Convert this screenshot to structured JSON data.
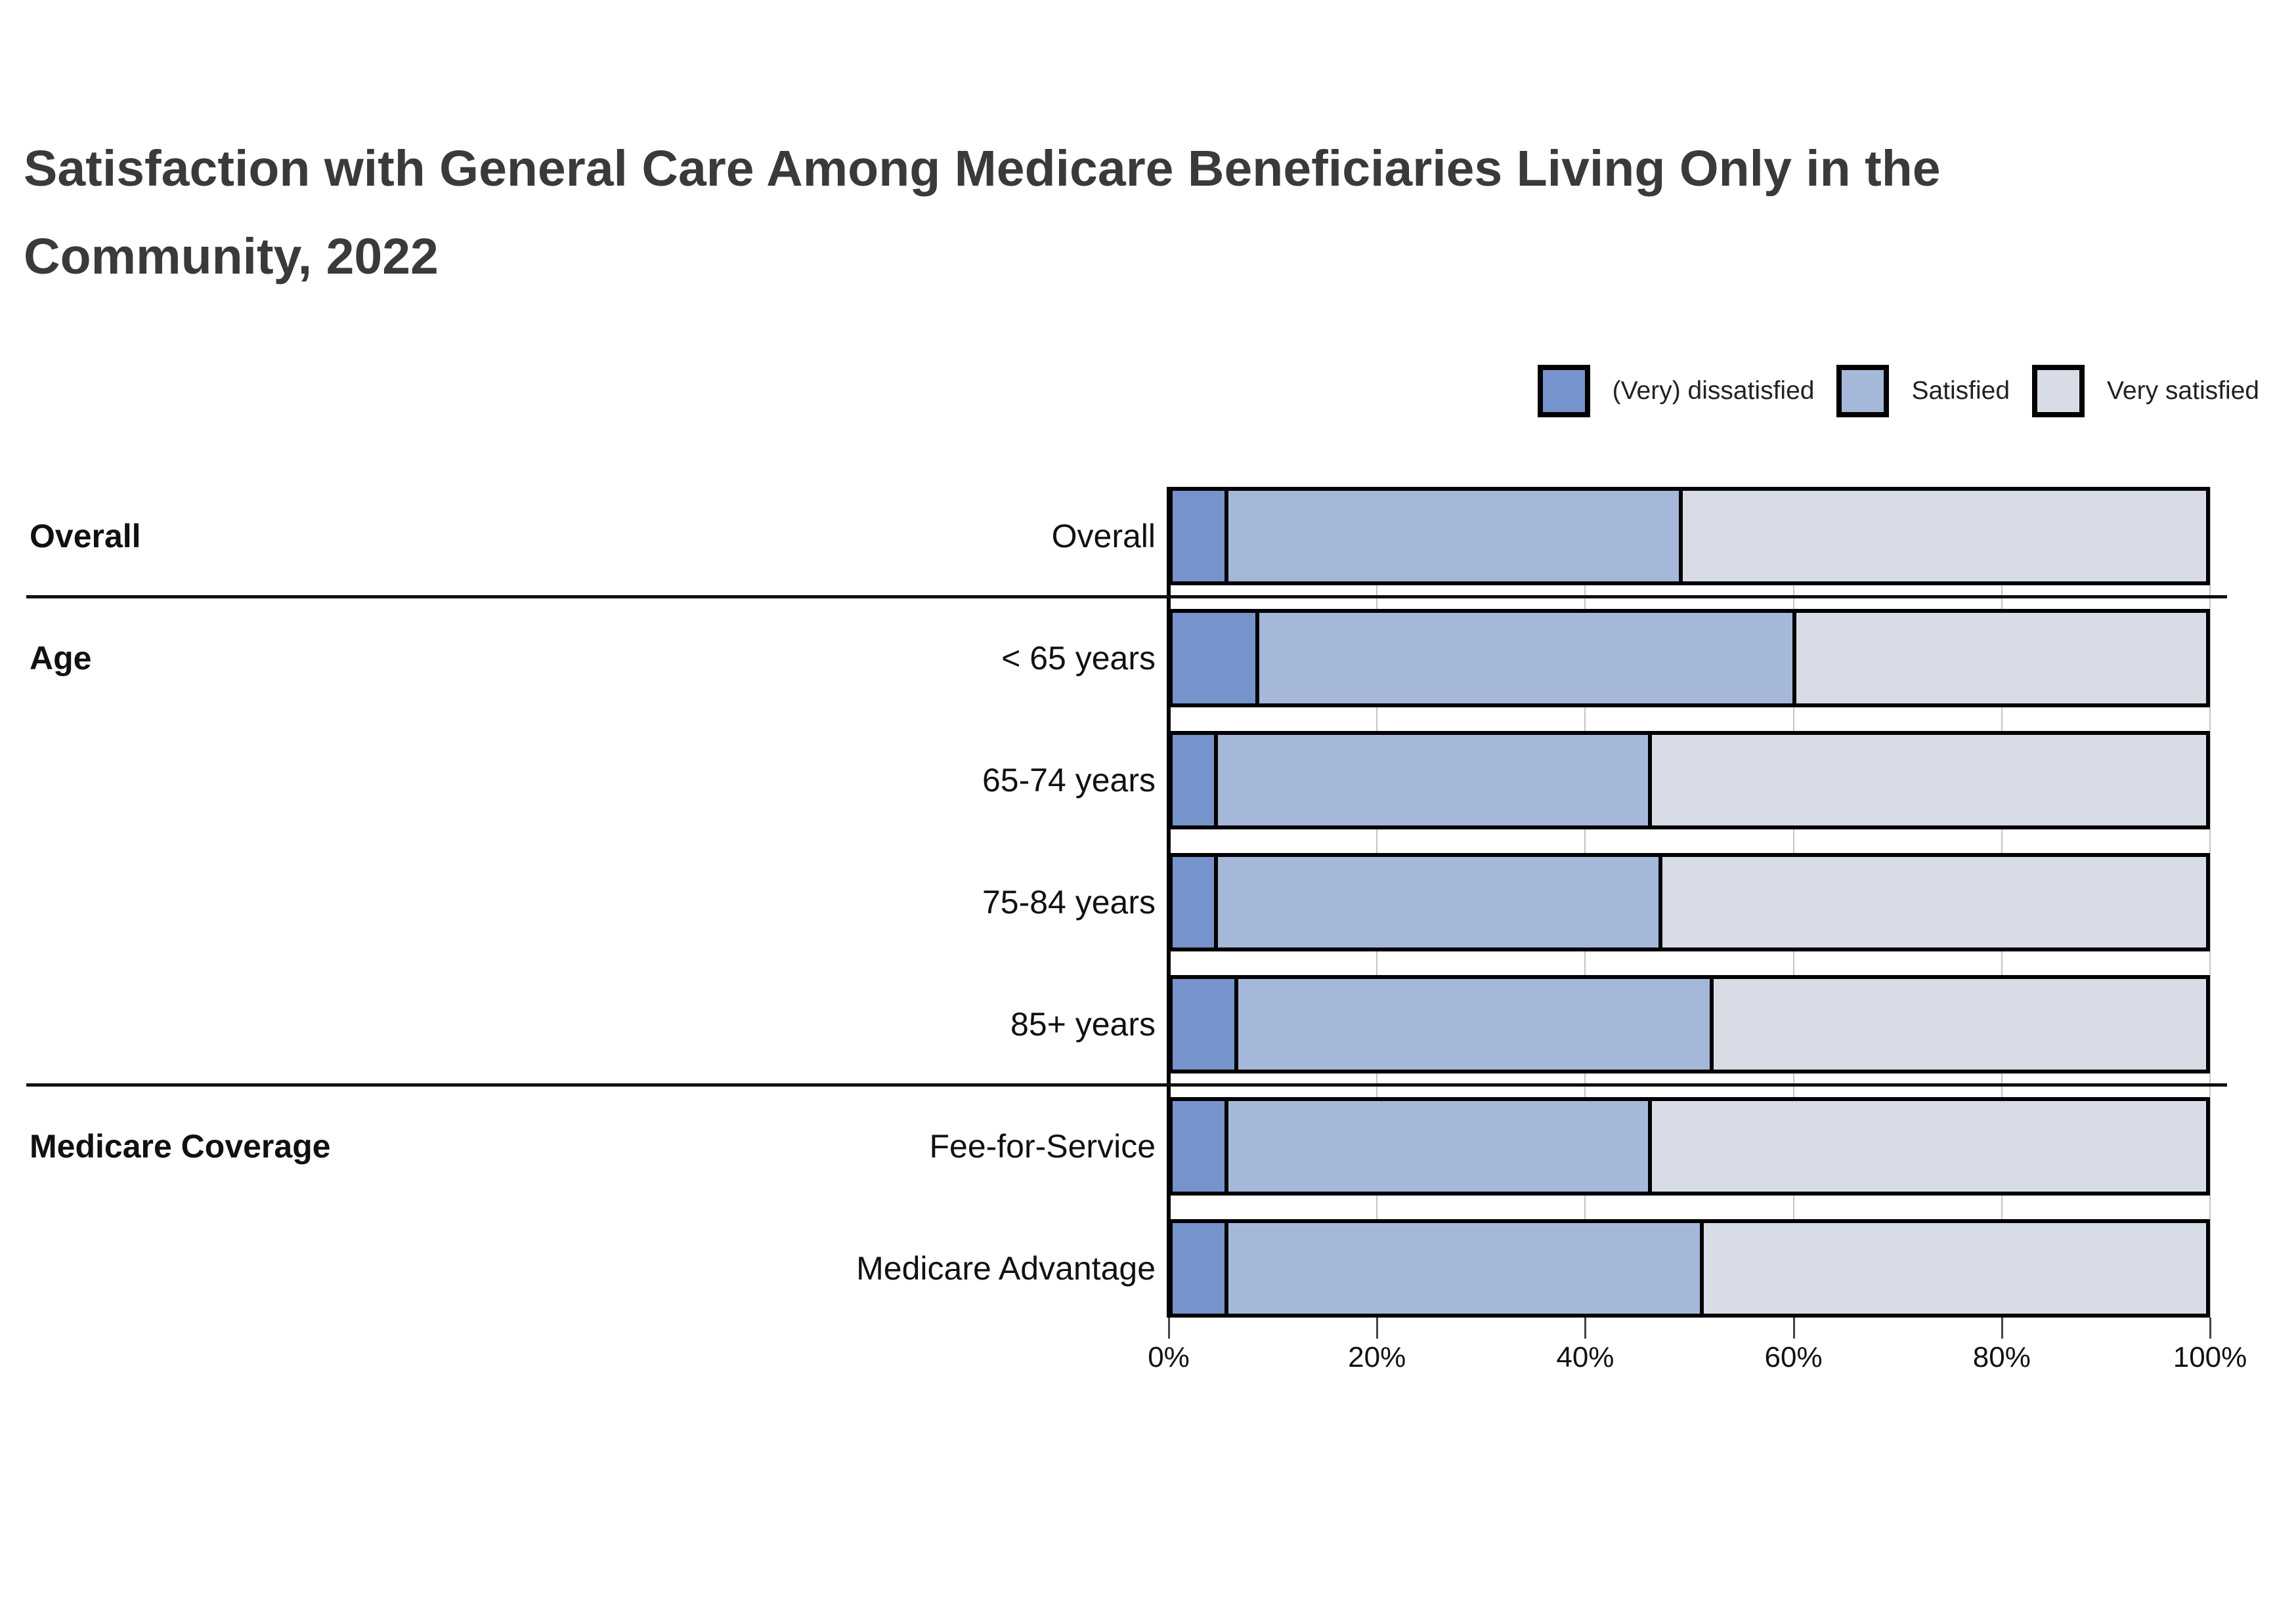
{
  "title": "Satisfaction with General Care Among Medicare Beneficiaries Living Only in the Community, 2022",
  "legend": [
    {
      "label": "(Very) dissatisfied",
      "color": "#7693CB"
    },
    {
      "label": "Satisfied",
      "color": "#A6B8DA"
    },
    {
      "label": "Very satisfied",
      "color": "#D7DCE6"
    }
  ],
  "chart_data": {
    "type": "bar",
    "orientation": "horizontal",
    "stacked": true,
    "title": "Satisfaction with General Care Among Medicare Beneficiaries Living Only in the Community, 2022",
    "categories": [
      "Overall",
      "< 65 years",
      "65-74 years",
      "75-84 years",
      "85+ years",
      "Fee-for-Service",
      "Medicare Advantage"
    ],
    "groups": [
      {
        "label": "Overall",
        "rows": [
          0
        ]
      },
      {
        "label": "Age",
        "rows": [
          1,
          2,
          3,
          4
        ]
      },
      {
        "label": "Medicare Coverage",
        "rows": [
          5,
          6
        ]
      }
    ],
    "series": [
      {
        "name": "(Very) dissatisfied",
        "color": "#7693CB",
        "values": [
          5,
          8,
          4,
          4,
          6,
          5,
          5
        ]
      },
      {
        "name": "Satisfied",
        "color": "#A6B8DA",
        "values": [
          44,
          52,
          42,
          43,
          46,
          41,
          46
        ]
      },
      {
        "name": "Very satisfied",
        "color": "#D7DCE6",
        "values": [
          51,
          40,
          54,
          53,
          48,
          54,
          49
        ]
      }
    ],
    "x_ticks": [
      "0%",
      "20%",
      "40%",
      "60%",
      "80%",
      "100%"
    ],
    "xlim": [
      0,
      100
    ],
    "grid": true,
    "legend_position": "top-right",
    "separators_after_rows": [
      0,
      4
    ],
    "bar_outline_color": "#000000"
  }
}
